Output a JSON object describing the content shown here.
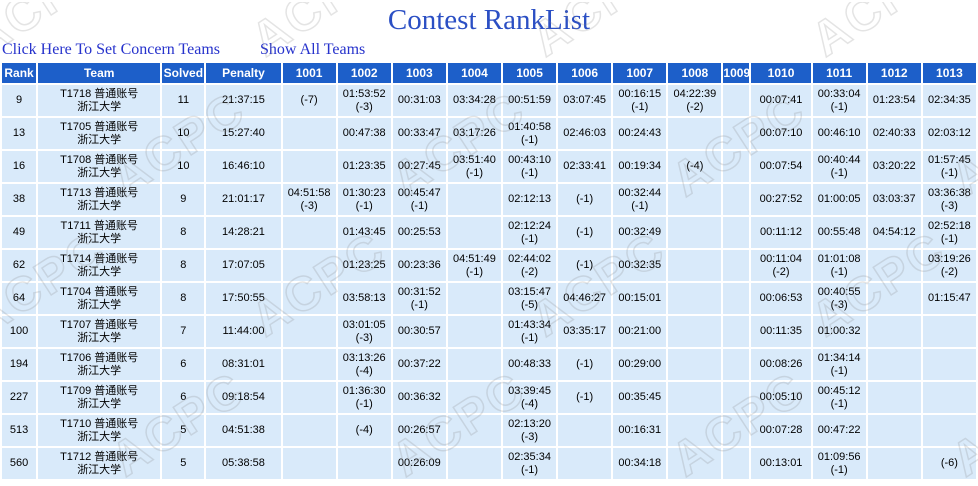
{
  "page": {
    "title": "Contest RankList",
    "links": {
      "set_concern": "Click Here To Set Concern Teams",
      "show_all": "Show All Teams"
    },
    "watermark": "ACPC"
  },
  "colors": {
    "header_bg": "#1d5fc9",
    "row_bg": "#d9eafa",
    "accepted": "#008000",
    "wrong": "#ff0000",
    "title": "#2b4fc4",
    "link": "#2632cc",
    "solved": "#2a64d0",
    "penalty": "#992e99",
    "text": "#000000"
  },
  "table": {
    "headers": [
      "Rank",
      "Team",
      "Solved",
      "Penalty",
      "1001",
      "1002",
      "1003",
      "1004",
      "1005",
      "1006",
      "1007",
      "1008",
      "1009",
      "1010",
      "1011",
      "1012",
      "1013"
    ],
    "rows": [
      {
        "rank": "9",
        "team_line1": "T1718 普通账号",
        "team_line2": "浙江大学",
        "solved": "11",
        "penalty": "21:37:15",
        "problems": [
          {
            "state": "wa",
            "tries": "(-7)"
          },
          {
            "state": "ac",
            "time": "01:53:52",
            "tries": "(-3)"
          },
          {
            "state": "ac",
            "time": "00:31:03"
          },
          {
            "state": "ac",
            "time": "03:34:28"
          },
          {
            "state": "ac",
            "time": "00:51:59"
          },
          {
            "state": "ac",
            "time": "03:07:45"
          },
          {
            "state": "ac",
            "time": "00:16:15",
            "tries": "(-1)"
          },
          {
            "state": "ac",
            "time": "04:22:39",
            "tries": "(-2)"
          },
          null,
          {
            "state": "ac",
            "time": "00:07:41"
          },
          {
            "state": "ac",
            "time": "00:33:04",
            "tries": "(-1)"
          },
          {
            "state": "ac",
            "time": "01:23:54"
          },
          {
            "state": "ac",
            "time": "02:34:35"
          }
        ]
      },
      {
        "rank": "13",
        "team_line1": "T1705 普通账号",
        "team_line2": "浙江大学",
        "solved": "10",
        "penalty": "15:27:40",
        "problems": [
          null,
          {
            "state": "ac",
            "time": "00:47:38"
          },
          {
            "state": "ac",
            "time": "00:33:47"
          },
          {
            "state": "ac",
            "time": "03:17:26"
          },
          {
            "state": "ac",
            "time": "01:40:58",
            "tries": "(-1)"
          },
          {
            "state": "ac",
            "time": "02:46:03"
          },
          {
            "state": "ac",
            "time": "00:24:43"
          },
          null,
          null,
          {
            "state": "ac",
            "time": "00:07:10"
          },
          {
            "state": "ac",
            "time": "00:46:10"
          },
          {
            "state": "ac",
            "time": "02:40:33"
          },
          {
            "state": "ac",
            "time": "02:03:12"
          }
        ]
      },
      {
        "rank": "16",
        "team_line1": "T1708 普通账号",
        "team_line2": "浙江大学",
        "solved": "10",
        "penalty": "16:46:10",
        "problems": [
          null,
          {
            "state": "ac",
            "time": "01:23:35"
          },
          {
            "state": "ac",
            "time": "00:27:45"
          },
          {
            "state": "ac",
            "time": "03:51:40",
            "tries": "(-1)"
          },
          {
            "state": "ac",
            "time": "00:43:10",
            "tries": "(-1)"
          },
          {
            "state": "ac",
            "time": "02:33:41"
          },
          {
            "state": "ac",
            "time": "00:19:34"
          },
          {
            "state": "wa",
            "tries": "(-4)"
          },
          null,
          {
            "state": "ac",
            "time": "00:07:54"
          },
          {
            "state": "ac",
            "time": "00:40:44",
            "tries": "(-1)"
          },
          {
            "state": "ac",
            "time": "03:20:22"
          },
          {
            "state": "ac",
            "time": "01:57:45",
            "tries": "(-1)"
          }
        ]
      },
      {
        "rank": "38",
        "team_line1": "T1713 普通账号",
        "team_line2": "浙江大学",
        "solved": "9",
        "penalty": "21:01:17",
        "problems": [
          {
            "state": "ac",
            "time": "04:51:58",
            "tries": "(-3)"
          },
          {
            "state": "ac",
            "time": "01:30:23",
            "tries": "(-1)"
          },
          {
            "state": "ac",
            "time": "00:45:47",
            "tries": "(-1)"
          },
          null,
          {
            "state": "ac",
            "time": "02:12:13"
          },
          {
            "state": "wa",
            "tries": "(-1)"
          },
          {
            "state": "ac",
            "time": "00:32:44",
            "tries": "(-1)"
          },
          null,
          null,
          {
            "state": "ac",
            "time": "00:27:52"
          },
          {
            "state": "ac",
            "time": "01:00:05"
          },
          {
            "state": "ac",
            "time": "03:03:37"
          },
          {
            "state": "ac",
            "time": "03:36:38",
            "tries": "(-3)"
          }
        ]
      },
      {
        "rank": "49",
        "team_line1": "T1711 普通账号",
        "team_line2": "浙江大学",
        "solved": "8",
        "penalty": "14:28:21",
        "problems": [
          null,
          {
            "state": "ac",
            "time": "01:43:45"
          },
          {
            "state": "ac",
            "time": "00:25:53"
          },
          null,
          {
            "state": "ac",
            "time": "02:12:24",
            "tries": "(-1)"
          },
          {
            "state": "wa",
            "tries": "(-1)"
          },
          {
            "state": "ac",
            "time": "00:32:49"
          },
          null,
          null,
          {
            "state": "ac",
            "time": "00:11:12"
          },
          {
            "state": "ac",
            "time": "00:55:48"
          },
          {
            "state": "ac",
            "time": "04:54:12"
          },
          {
            "state": "ac",
            "time": "02:52:18",
            "tries": "(-1)"
          }
        ]
      },
      {
        "rank": "62",
        "team_line1": "T1714 普通账号",
        "team_line2": "浙江大学",
        "solved": "8",
        "penalty": "17:07:05",
        "problems": [
          null,
          {
            "state": "ac",
            "time": "01:23:25"
          },
          {
            "state": "ac",
            "time": "00:23:36"
          },
          {
            "state": "ac",
            "time": "04:51:49",
            "tries": "(-1)"
          },
          {
            "state": "ac",
            "time": "02:44:02",
            "tries": "(-2)"
          },
          {
            "state": "wa",
            "tries": "(-1)"
          },
          {
            "state": "ac",
            "time": "00:32:35"
          },
          null,
          null,
          {
            "state": "ac",
            "time": "00:11:04",
            "tries": "(-2)"
          },
          {
            "state": "ac",
            "time": "01:01:08",
            "tries": "(-1)"
          },
          null,
          {
            "state": "ac",
            "time": "03:19:26",
            "tries": "(-2)"
          }
        ]
      },
      {
        "rank": "64",
        "team_line1": "T1704 普通账号",
        "team_line2": "浙江大学",
        "solved": "8",
        "penalty": "17:50:55",
        "problems": [
          null,
          {
            "state": "ac",
            "time": "03:58:13"
          },
          {
            "state": "ac",
            "time": "00:31:52",
            "tries": "(-1)"
          },
          null,
          {
            "state": "ac",
            "time": "03:15:47",
            "tries": "(-5)"
          },
          {
            "state": "ac",
            "time": "04:46:27"
          },
          {
            "state": "ac",
            "time": "00:15:01"
          },
          null,
          null,
          {
            "state": "ac",
            "time": "00:06:53"
          },
          {
            "state": "ac",
            "time": "00:40:55",
            "tries": "(-3)"
          },
          null,
          {
            "state": "ac",
            "time": "01:15:47"
          }
        ]
      },
      {
        "rank": "100",
        "team_line1": "T1707 普通账号",
        "team_line2": "浙江大学",
        "solved": "7",
        "penalty": "11:44:00",
        "problems": [
          null,
          {
            "state": "ac",
            "time": "03:01:05",
            "tries": "(-3)"
          },
          {
            "state": "ac",
            "time": "00:30:57"
          },
          null,
          {
            "state": "ac",
            "time": "01:43:34",
            "tries": "(-1)"
          },
          {
            "state": "ac",
            "time": "03:35:17"
          },
          {
            "state": "ac",
            "time": "00:21:00"
          },
          null,
          null,
          {
            "state": "ac",
            "time": "00:11:35"
          },
          {
            "state": "ac",
            "time": "01:00:32"
          },
          null,
          null
        ]
      },
      {
        "rank": "194",
        "team_line1": "T1706 普通账号",
        "team_line2": "浙江大学",
        "solved": "6",
        "penalty": "08:31:01",
        "problems": [
          null,
          {
            "state": "ac",
            "time": "03:13:26",
            "tries": "(-4)"
          },
          {
            "state": "ac",
            "time": "00:37:22"
          },
          null,
          {
            "state": "ac",
            "time": "00:48:33"
          },
          {
            "state": "wa",
            "tries": "(-1)"
          },
          {
            "state": "ac",
            "time": "00:29:00"
          },
          null,
          null,
          {
            "state": "ac",
            "time": "00:08:26"
          },
          {
            "state": "ac",
            "time": "01:34:14",
            "tries": "(-1)"
          },
          null,
          null
        ]
      },
      {
        "rank": "227",
        "team_line1": "T1709 普通账号",
        "team_line2": "浙江大学",
        "solved": "6",
        "penalty": "09:18:54",
        "problems": [
          null,
          {
            "state": "ac",
            "time": "01:36:30",
            "tries": "(-1)"
          },
          {
            "state": "ac",
            "time": "00:36:32"
          },
          null,
          {
            "state": "ac",
            "time": "03:39:45",
            "tries": "(-4)"
          },
          {
            "state": "wa",
            "tries": "(-1)"
          },
          {
            "state": "ac",
            "time": "00:35:45"
          },
          null,
          null,
          {
            "state": "ac",
            "time": "00:05:10"
          },
          {
            "state": "ac",
            "time": "00:45:12",
            "tries": "(-1)"
          },
          null,
          null
        ]
      },
      {
        "rank": "513",
        "team_line1": "T1710 普通账号",
        "team_line2": "浙江大学",
        "solved": "5",
        "penalty": "04:51:38",
        "problems": [
          null,
          {
            "state": "wa",
            "tries": "(-4)"
          },
          {
            "state": "ac",
            "time": "00:26:57"
          },
          null,
          {
            "state": "ac",
            "time": "02:13:20",
            "tries": "(-3)"
          },
          null,
          {
            "state": "ac",
            "time": "00:16:31"
          },
          null,
          null,
          {
            "state": "ac",
            "time": "00:07:28"
          },
          {
            "state": "ac",
            "time": "00:47:22"
          },
          null,
          null
        ]
      },
      {
        "rank": "560",
        "team_line1": "T1712 普通账号",
        "team_line2": "浙江大学",
        "solved": "5",
        "penalty": "05:38:58",
        "problems": [
          null,
          null,
          {
            "state": "ac",
            "time": "00:26:09"
          },
          null,
          {
            "state": "ac",
            "time": "02:35:34",
            "tries": "(-1)"
          },
          null,
          {
            "state": "ac",
            "time": "00:34:18"
          },
          null,
          null,
          {
            "state": "ac",
            "time": "00:13:01"
          },
          {
            "state": "ac",
            "time": "01:09:56",
            "tries": "(-1)"
          },
          null,
          {
            "state": "wa",
            "tries": "(-6)"
          }
        ]
      }
    ]
  }
}
